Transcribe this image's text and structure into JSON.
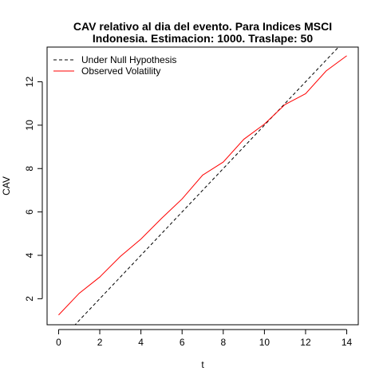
{
  "chart_data": {
    "type": "line",
    "title": [
      "CAV relativo al dia del evento. Para Indices MSCI",
      "Indonesia. Estimacion: 1000. Traslape: 50"
    ],
    "xlabel": "t",
    "ylabel": "CAV",
    "xlim": [
      -0.56,
      14.56
    ],
    "ylim": [
      0.8,
      13.6
    ],
    "xticks": [
      0,
      2,
      4,
      6,
      8,
      10,
      12,
      14
    ],
    "yticks": [
      2,
      4,
      6,
      8,
      10,
      12
    ],
    "legend_position": "top-left",
    "series": [
      {
        "name": "Under Null Hypothesis",
        "color": "#000000",
        "line_style": "dashed",
        "x": [
          0,
          14
        ],
        "y": [
          0,
          14
        ]
      },
      {
        "name": "Observed Volatility",
        "color": "#ff0000",
        "line_style": "solid",
        "x": [
          0,
          1,
          2,
          3,
          4,
          5,
          6,
          7,
          8,
          9,
          10,
          11,
          12,
          13,
          14
        ],
        "y": [
          1.25,
          2.25,
          3.0,
          3.95,
          4.75,
          5.7,
          6.6,
          7.7,
          8.3,
          9.35,
          10.05,
          10.95,
          11.45,
          12.5,
          13.2
        ]
      }
    ]
  }
}
